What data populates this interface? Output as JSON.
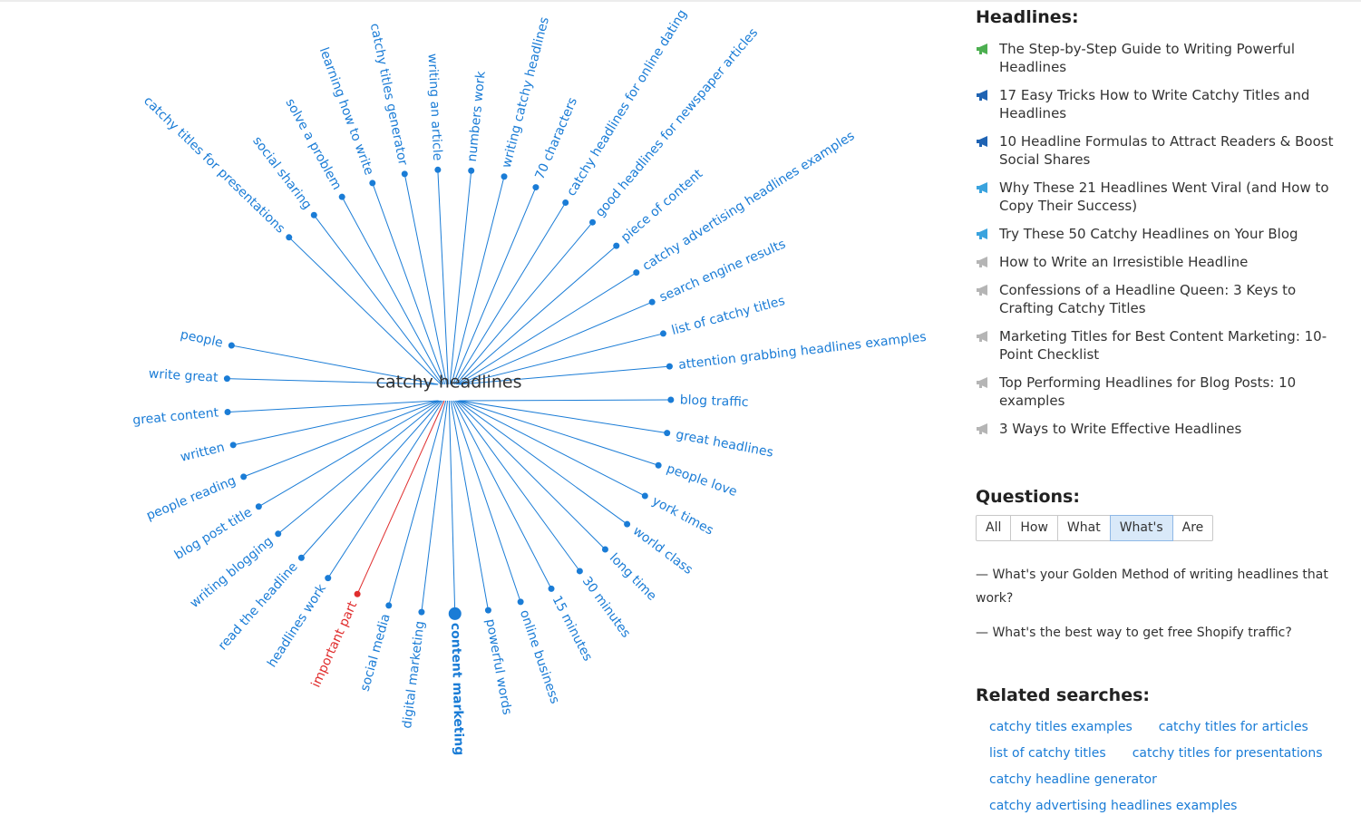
{
  "mindmap": {
    "center": "catchy headlines",
    "highlighted": "important part",
    "featured": "content marketing",
    "colors": {
      "line": "#1a7cd6",
      "text": "#1a7cd6",
      "highlight": "#e02d2d",
      "center": "#333333"
    },
    "terms": [
      "people",
      "write great",
      "great content",
      "written",
      "people reading",
      "blog post title",
      "writing blogging",
      "read the headline",
      "headlines work",
      "important part",
      "social media",
      "digital marketing",
      "content marketing",
      "powerful words",
      "online business",
      "15 minutes",
      "30 minutes",
      "long time",
      "world class",
      "york times",
      "people love",
      "great headlines",
      "blog traffic",
      "attention grabbing headlines examples",
      "list of catchy titles",
      "search engine results",
      "catchy advertising headlines examples",
      "piece of content",
      "good headlines for newspaper articles",
      "catchy headlines for online dating",
      "70 characters",
      "writing catchy headlines",
      "numbers work",
      "writing an article",
      "catchy titles generator",
      "learning how to write",
      "solve a problem",
      "social sharing",
      "catchy titles for presentations"
    ]
  },
  "headlines": {
    "title": "Headlines:",
    "items": [
      {
        "text": "The Step-by-Step Guide to Writing Powerful Headlines",
        "icon": "green-megaphone-icon",
        "color": "#4caf50"
      },
      {
        "text": "17 Easy Tricks How to Write Catchy Titles and Headlines",
        "icon": "blue-megaphone-icon",
        "color": "#1f63b3"
      },
      {
        "text": "10 Headline Formulas to Attract Readers & Boost Social Shares",
        "icon": "blue-megaphone-icon",
        "color": "#1f63b3"
      },
      {
        "text": "Why These 21 Headlines Went Viral (and How to Copy Their Success)",
        "icon": "light-blue-megaphone-icon",
        "color": "#3aa3de"
      },
      {
        "text": "Try These 50 Catchy Headlines on Your Blog",
        "icon": "light-blue-megaphone-icon",
        "color": "#3aa3de"
      },
      {
        "text": "How to Write an Irresistible Headline",
        "icon": "gray-megaphone-icon",
        "color": "#b5b5b5"
      },
      {
        "text": "Confessions of a Headline Queen: 3 Keys to Crafting Catchy Titles",
        "icon": "gray-megaphone-icon",
        "color": "#b5b5b5"
      },
      {
        "text": "Marketing Titles for Best Content Marketing: 10-Point Checklist",
        "icon": "gray-megaphone-icon",
        "color": "#b5b5b5"
      },
      {
        "text": "Top Performing Headlines for Blog Posts: 10 examples",
        "icon": "gray-megaphone-icon",
        "color": "#b5b5b5"
      },
      {
        "text": "3 Ways to Write Effective Headlines",
        "icon": "gray-megaphone-icon",
        "color": "#b5b5b5"
      }
    ]
  },
  "questions": {
    "title": "Questions:",
    "tabs": [
      "All",
      "How",
      "What",
      "What's",
      "Are"
    ],
    "active_tab": "What's",
    "items": [
      "— What's your Golden Method of writing headlines that work?",
      "— What's the best way to get free Shopify traffic?"
    ]
  },
  "related": {
    "title": "Related searches:",
    "links": [
      "catchy titles examples",
      "catchy titles for articles",
      "list of catchy titles",
      "catchy titles for presentations",
      "catchy headline generator",
      "catchy advertising headlines examples"
    ]
  }
}
